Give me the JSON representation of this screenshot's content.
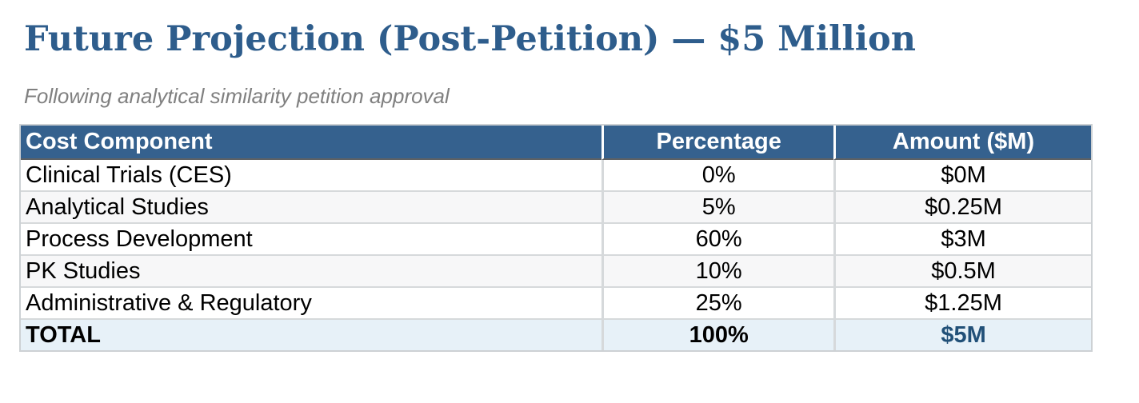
{
  "page": {
    "title": "Future Projection (Post-Petition) — $5 Million",
    "subtitle": "Following analytical similarity petition approval"
  },
  "table": {
    "columns": {
      "component": "Cost Component",
      "percentage": "Percentage",
      "amount": "Amount ($M)"
    },
    "rows": [
      {
        "component": "Clinical Trials (CES)",
        "percentage": "0%",
        "amount": "$0M"
      },
      {
        "component": "Analytical Studies",
        "percentage": "5%",
        "amount": "$0.25M"
      },
      {
        "component": "Process Development",
        "percentage": "60%",
        "amount": "$3M"
      },
      {
        "component": "PK Studies",
        "percentage": "10%",
        "amount": "$0.5M"
      },
      {
        "component": "Administrative & Regulatory",
        "percentage": "25%",
        "amount": "$1.25M"
      }
    ],
    "total": {
      "component": "TOTAL",
      "percentage": "100%",
      "amount": "$5M"
    }
  },
  "colors": {
    "title_text": "#2E5D8C",
    "subtitle_text": "#808080",
    "header_bg": "#35618E",
    "header_text": "#FFFFFF",
    "stripe_bg": "#F7F7F8",
    "total_row_bg": "#E7F1F8",
    "total_amount_text": "#215078"
  }
}
